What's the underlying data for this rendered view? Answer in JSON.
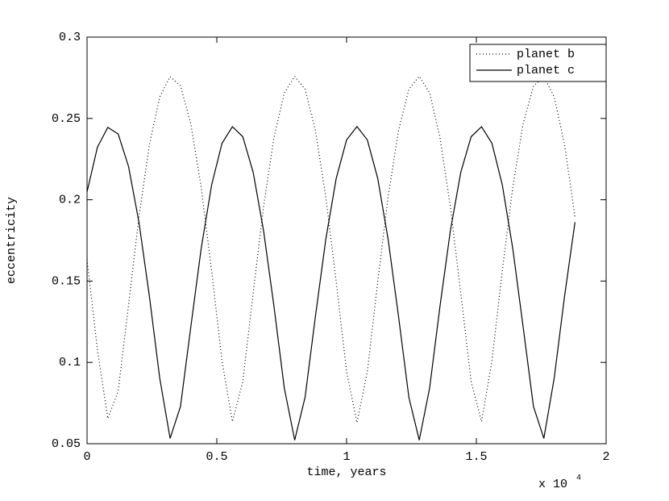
{
  "chart_data": {
    "type": "line",
    "xlabel": "time,  years",
    "ylabel": "eccentricity",
    "x_multiplier": "x 10",
    "x_multiplier_exponent": "4",
    "x": [
      0,
      0.04,
      0.08,
      0.12,
      0.16,
      0.2,
      0.24,
      0.28,
      0.32,
      0.36,
      0.4,
      0.44,
      0.48,
      0.52,
      0.56,
      0.6,
      0.64,
      0.68,
      0.72,
      0.76,
      0.8,
      0.84,
      0.88,
      0.92,
      0.96,
      1.0,
      1.04,
      1.08,
      1.12,
      1.16,
      1.2,
      1.24,
      1.28,
      1.32,
      1.36,
      1.4,
      1.44,
      1.48,
      1.52,
      1.56,
      1.6,
      1.64,
      1.68,
      1.72,
      1.76,
      1.8,
      1.84,
      1.88,
      1.92,
      1.89
    ],
    "series": [
      {
        "name": "planet b",
        "color": "#000000",
        "line_style": "dotted",
        "values": [
          0.1633,
          0.1077,
          0.0655,
          0.0824,
          0.1355,
          0.1895,
          0.2336,
          0.2632,
          0.2757,
          0.27,
          0.2466,
          0.2074,
          0.1564,
          0.1009,
          0.0636,
          0.0881,
          0.1425,
          0.1956,
          0.2381,
          0.2657,
          0.2759,
          0.268,
          0.2425,
          0.2016,
          0.1496,
          0.0944,
          0.063,
          0.0944,
          0.1496,
          0.2017,
          0.2425,
          0.268,
          0.2759,
          0.2657,
          0.2381,
          0.1956,
          0.1425,
          0.0881,
          0.0636,
          0.1009,
          0.1564,
          0.2074,
          0.2466,
          0.27,
          0.2757,
          0.2632,
          0.2336,
          0.1895,
          null,
          0.1766
        ]
      },
      {
        "name": "planet c",
        "color": "#000000",
        "line_style": "solid",
        "values": [
          0.2049,
          0.2323,
          0.2445,
          0.2404,
          0.2204,
          0.1862,
          0.1409,
          0.0904,
          0.0533,
          0.0729,
          0.1221,
          0.1703,
          0.2091,
          0.2347,
          0.2449,
          0.2388,
          0.2169,
          0.1811,
          0.1347,
          0.0843,
          0.0522,
          0.0785,
          0.1284,
          0.1758,
          0.2131,
          0.2368,
          0.245,
          0.2368,
          0.2131,
          0.1757,
          0.1284,
          0.0785,
          0.0522,
          0.0843,
          0.1347,
          0.1811,
          0.2169,
          0.2388,
          0.2449,
          0.2347,
          0.2091,
          0.1703,
          0.1221,
          0.0729,
          0.0533,
          0.0904,
          0.1409,
          0.1862,
          null,
          0.196
        ]
      }
    ],
    "xlim": [
      0,
      2
    ],
    "xticks": [
      0,
      0.5,
      1,
      1.5,
      2
    ],
    "ylim": [
      0.05,
      0.3
    ],
    "yticks": [
      0.05,
      0.1,
      0.15,
      0.2,
      0.25,
      0.3
    ],
    "grid": false,
    "legend": "upper right"
  }
}
